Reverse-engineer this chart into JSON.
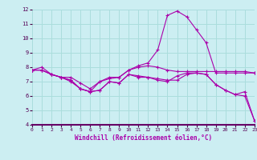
{
  "xlabel": "Windchill (Refroidissement éolien,°C)",
  "background_color": "#cceef2",
  "grid_color": "#aadddd",
  "line_color": "#aa00aa",
  "x": [
    0,
    1,
    2,
    3,
    4,
    5,
    6,
    7,
    8,
    9,
    10,
    11,
    12,
    13,
    14,
    15,
    16,
    17,
    18,
    19,
    20,
    21,
    22,
    23
  ],
  "series": [
    [
      7.8,
      8.0,
      7.5,
      7.3,
      7.1,
      6.5,
      6.3,
      6.4,
      7.0,
      6.9,
      7.5,
      7.3,
      7.3,
      7.1,
      7.0,
      7.4,
      7.6,
      7.6,
      7.5,
      6.8,
      6.4,
      6.1,
      6.3,
      4.3
    ],
    [
      7.8,
      7.8,
      7.5,
      7.3,
      7.1,
      6.5,
      6.3,
      7.0,
      7.3,
      7.3,
      7.8,
      8.1,
      8.3,
      9.2,
      11.6,
      11.9,
      11.5,
      10.6,
      9.7,
      7.6,
      7.6,
      7.6,
      7.6,
      7.6
    ],
    [
      7.8,
      7.8,
      7.5,
      7.3,
      7.3,
      6.9,
      6.5,
      7.0,
      7.2,
      7.3,
      7.8,
      8.0,
      8.1,
      8.0,
      7.8,
      7.7,
      7.7,
      7.7,
      7.7,
      7.7,
      7.7,
      7.7,
      7.7,
      7.6
    ],
    [
      7.8,
      7.8,
      7.5,
      7.3,
      7.0,
      6.5,
      6.3,
      6.4,
      7.0,
      6.9,
      7.5,
      7.4,
      7.3,
      7.2,
      7.1,
      7.1,
      7.5,
      7.6,
      7.5,
      6.8,
      6.4,
      6.1,
      6.0,
      4.3
    ]
  ],
  "ylim": [
    4,
    12
  ],
  "xlim": [
    0,
    23
  ],
  "yticks": [
    4,
    5,
    6,
    7,
    8,
    9,
    10,
    11,
    12
  ],
  "xticks": [
    0,
    1,
    2,
    3,
    4,
    5,
    6,
    7,
    8,
    9,
    10,
    11,
    12,
    13,
    14,
    15,
    16,
    17,
    18,
    19,
    20,
    21,
    22,
    23
  ]
}
